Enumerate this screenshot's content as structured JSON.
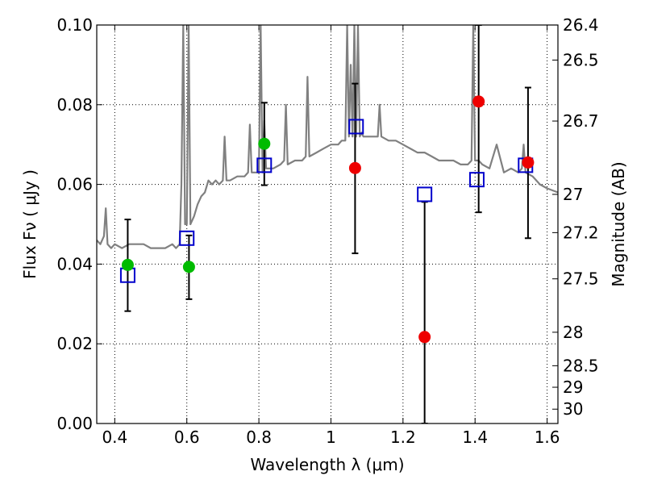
{
  "chart_data": {
    "type": "scatter",
    "xlabel": "Wavelength  λ (μm)",
    "ylabel": "Flux  Fν  ( μJy )",
    "ylabel_right": "Magnitude (AB)",
    "xlim": [
      0.35,
      1.63
    ],
    "ylim": [
      0.0,
      0.1
    ],
    "grid": true,
    "x_ticks": [
      0.4,
      0.6,
      0.8,
      1.0,
      1.2,
      1.4,
      1.6
    ],
    "x_tick_labels": [
      "0.4",
      "0.6",
      "0.8",
      "1",
      "1.2",
      "1.4",
      "1.6"
    ],
    "y_ticks": [
      0.0,
      0.02,
      0.04,
      0.06,
      0.08,
      0.1
    ],
    "y_tick_labels": [
      "0.00",
      "0.02",
      "0.04",
      "0.06",
      "0.08",
      "0.10"
    ],
    "right_axis_ticks": [
      {
        "label": "26.4",
        "flux": 0.1
      },
      {
        "label": "26.5",
        "flux": 0.0912
      },
      {
        "label": "26.7",
        "flux": 0.0759
      },
      {
        "label": "27",
        "flux": 0.0575
      },
      {
        "label": "27.2",
        "flux": 0.0479
      },
      {
        "label": "27.5",
        "flux": 0.0363
      },
      {
        "label": "28",
        "flux": 0.0229
      },
      {
        "label": "28.5",
        "flux": 0.0145
      },
      {
        "label": "29",
        "flux": 0.0091
      },
      {
        "label": "30",
        "flux": 0.0036
      }
    ],
    "spectrum": {
      "color": "#808080",
      "x": [
        0.35,
        0.36,
        0.37,
        0.375,
        0.38,
        0.39,
        0.4,
        0.42,
        0.44,
        0.46,
        0.48,
        0.5,
        0.52,
        0.54,
        0.56,
        0.57,
        0.58,
        0.585,
        0.59,
        0.595,
        0.6,
        0.605,
        0.61,
        0.62,
        0.63,
        0.64,
        0.65,
        0.66,
        0.67,
        0.68,
        0.69,
        0.7,
        0.705,
        0.71,
        0.72,
        0.74,
        0.76,
        0.77,
        0.775,
        0.78,
        0.8,
        0.805,
        0.81,
        0.815,
        0.82,
        0.84,
        0.86,
        0.87,
        0.875,
        0.88,
        0.9,
        0.92,
        0.93,
        0.935,
        0.94,
        0.96,
        0.98,
        1.0,
        1.02,
        1.03,
        1.04,
        1.045,
        1.05,
        1.055,
        1.06,
        1.065,
        1.07,
        1.075,
        1.08,
        1.085,
        1.09,
        1.1,
        1.12,
        1.13,
        1.135,
        1.14,
        1.16,
        1.18,
        1.2,
        1.22,
        1.24,
        1.26,
        1.28,
        1.3,
        1.32,
        1.34,
        1.36,
        1.38,
        1.39,
        1.395,
        1.4,
        1.41,
        1.42,
        1.44,
        1.46,
        1.48,
        1.5,
        1.52,
        1.53,
        1.535,
        1.54,
        1.56,
        1.58,
        1.6,
        1.63
      ],
      "y": [
        0.046,
        0.045,
        0.047,
        0.054,
        0.045,
        0.044,
        0.045,
        0.044,
        0.045,
        0.045,
        0.045,
        0.044,
        0.044,
        0.044,
        0.045,
        0.044,
        0.045,
        0.06,
        0.1,
        0.05,
        0.05,
        0.1,
        0.05,
        0.052,
        0.055,
        0.057,
        0.058,
        0.061,
        0.06,
        0.061,
        0.06,
        0.061,
        0.072,
        0.061,
        0.061,
        0.062,
        0.062,
        0.063,
        0.075,
        0.063,
        0.063,
        0.1,
        0.063,
        0.076,
        0.064,
        0.064,
        0.065,
        0.066,
        0.08,
        0.065,
        0.066,
        0.066,
        0.067,
        0.087,
        0.067,
        0.068,
        0.069,
        0.07,
        0.07,
        0.071,
        0.071,
        0.1,
        0.072,
        0.09,
        0.072,
        0.1,
        0.072,
        0.1,
        0.072,
        0.073,
        0.072,
        0.072,
        0.072,
        0.072,
        0.08,
        0.072,
        0.071,
        0.071,
        0.07,
        0.069,
        0.068,
        0.068,
        0.067,
        0.066,
        0.066,
        0.066,
        0.065,
        0.065,
        0.066,
        0.1,
        0.066,
        0.066,
        0.065,
        0.064,
        0.07,
        0.063,
        0.064,
        0.063,
        0.064,
        0.07,
        0.063,
        0.062,
        0.06,
        0.059,
        0.058
      ]
    },
    "error_bars": [
      {
        "x": 0.436,
        "low": 0.0282,
        "high": 0.0512
      },
      {
        "x": 0.606,
        "low": 0.0312,
        "high": 0.0472
      },
      {
        "x": 0.815,
        "low": 0.0598,
        "high": 0.0805
      },
      {
        "x": 1.067,
        "low": 0.0427,
        "high": 0.0853
      },
      {
        "x": 1.26,
        "low": 0.0,
        "high": 0.0556
      },
      {
        "x": 1.41,
        "low": 0.053,
        "high": 0.1
      },
      {
        "x": 1.547,
        "low": 0.0465,
        "high": 0.0843
      }
    ],
    "model_photometry": {
      "color": "#0000cc",
      "x": [
        0.436,
        0.6,
        0.815,
        1.07,
        1.26,
        1.405,
        1.54
      ],
      "y": [
        0.0372,
        0.0465,
        0.0648,
        0.0745,
        0.0575,
        0.0612,
        0.0648
      ]
    },
    "observed_green": {
      "color": "#00bb00",
      "x": [
        0.436,
        0.606,
        0.815
      ],
      "y": [
        0.0398,
        0.0393,
        0.0702
      ]
    },
    "observed_red": {
      "color": "#ee0000",
      "x": [
        1.067,
        1.26,
        1.41,
        1.547
      ],
      "y": [
        0.0641,
        0.0217,
        0.0808,
        0.0655
      ]
    }
  }
}
